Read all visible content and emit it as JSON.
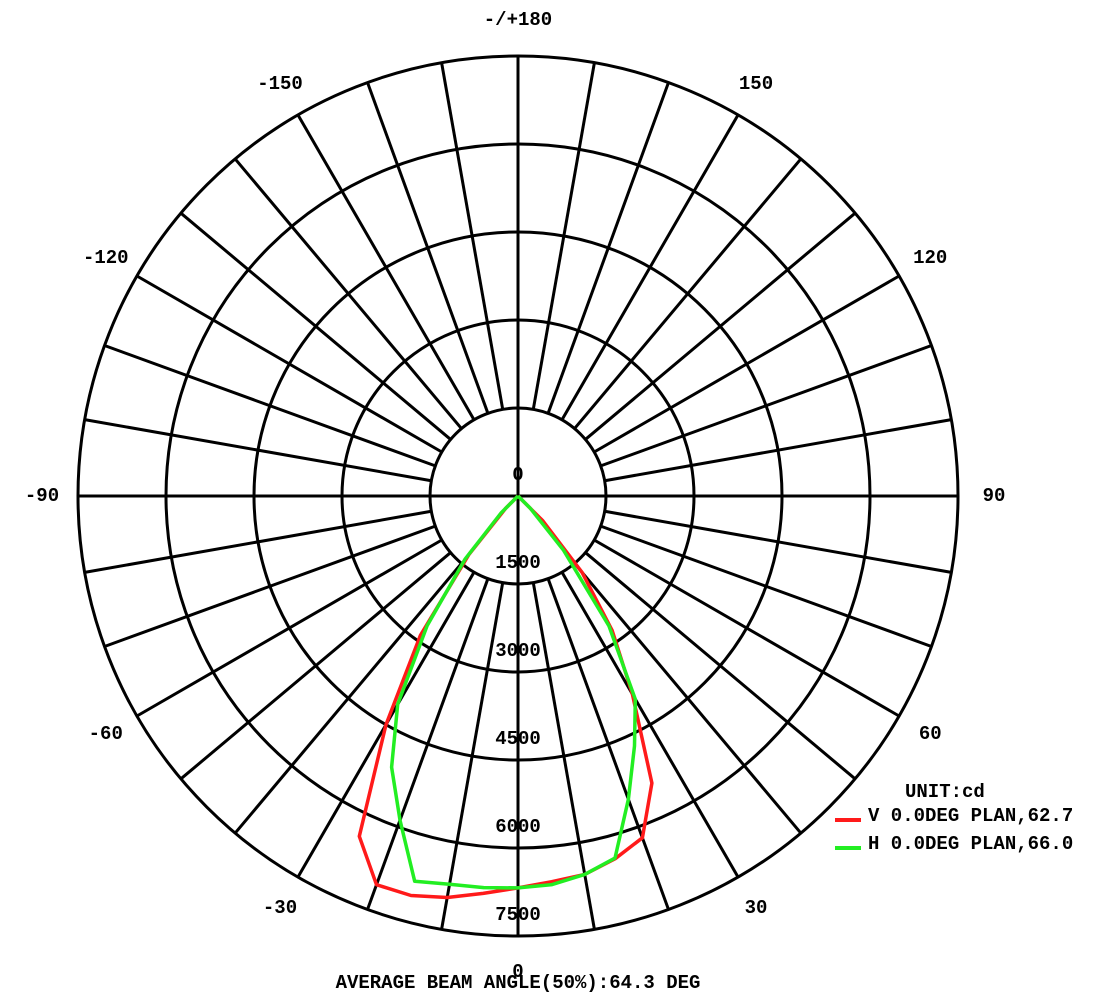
{
  "chart_data": {
    "type": "polar",
    "rlim": [
      0,
      7500
    ],
    "rticks": [
      0,
      1500,
      3000,
      4500,
      6000,
      7500
    ],
    "angle_ticks": [
      {
        "value": 180,
        "label": "-/+180"
      },
      150,
      120,
      90,
      60,
      30,
      0,
      -30,
      -60,
      -90,
      -120,
      -150
    ],
    "angles": [
      -50,
      -45,
      -40,
      -35,
      -30,
      -25,
      -20,
      -15,
      -10,
      -5,
      0,
      5,
      10,
      15,
      20,
      25,
      30,
      35,
      40,
      45,
      50
    ],
    "unit": "UNIT:cd",
    "series": [
      {
        "name": "V 0.0DEG PLAN,62.7",
        "color": "#ff1a1a",
        "values": [
          0,
          300,
          1300,
          2900,
          4500,
          6400,
          7050,
          7050,
          6950,
          6800,
          6680,
          6600,
          6550,
          6400,
          6200,
          5400,
          3900,
          2800,
          1700,
          600,
          0
        ]
      },
      {
        "name": "H 0.0DEG PLAN,66.0",
        "color": "#22ee22",
        "values": [
          0,
          400,
          1400,
          2700,
          4100,
          5100,
          5880,
          6800,
          6720,
          6700,
          6680,
          6650,
          6550,
          6390,
          5500,
          4700,
          4000,
          2700,
          1200,
          300,
          0
        ]
      }
    ],
    "note": "AVERAGE BEAM ANGLE(50%):64.3 DEG"
  }
}
